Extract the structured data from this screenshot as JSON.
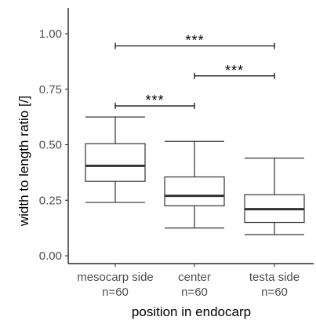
{
  "chart_data": {
    "type": "boxplot",
    "xlabel": "position in endocarp",
    "ylabel": "width to length ratio [/]",
    "ylim": [
      0,
      1.04
    ],
    "y_ticks": [
      "0.00",
      "0.25",
      "0.50",
      "0.75",
      "1.00"
    ],
    "y_tick_values": [
      0,
      0.25,
      0.5,
      0.75,
      1.0
    ],
    "categories": [
      {
        "label": "mesocarp side",
        "n_label": "n=60"
      },
      {
        "label": "center",
        "n_label": "n=60"
      },
      {
        "label": "testa side",
        "n_label": "n=60"
      }
    ],
    "boxes": [
      {
        "whisker_low": 0.24,
        "q1": 0.335,
        "median": 0.405,
        "q3": 0.505,
        "whisker_high": 0.625
      },
      {
        "whisker_low": 0.125,
        "q1": 0.225,
        "median": 0.27,
        "q3": 0.355,
        "whisker_high": 0.515
      },
      {
        "whisker_low": 0.095,
        "q1": 0.15,
        "median": 0.21,
        "q3": 0.275,
        "whisker_high": 0.44
      }
    ],
    "significance": [
      {
        "from": 0,
        "to": 1,
        "y": 0.675,
        "label": "***"
      },
      {
        "from": 1,
        "to": 2,
        "y": 0.81,
        "label": "***"
      },
      {
        "from": 0,
        "to": 2,
        "y": 0.945,
        "label": "***"
      }
    ],
    "grid": false,
    "colors": {
      "box_fill": "#ffffff",
      "box_line": "#333333",
      "median_line": "#333333"
    }
  }
}
